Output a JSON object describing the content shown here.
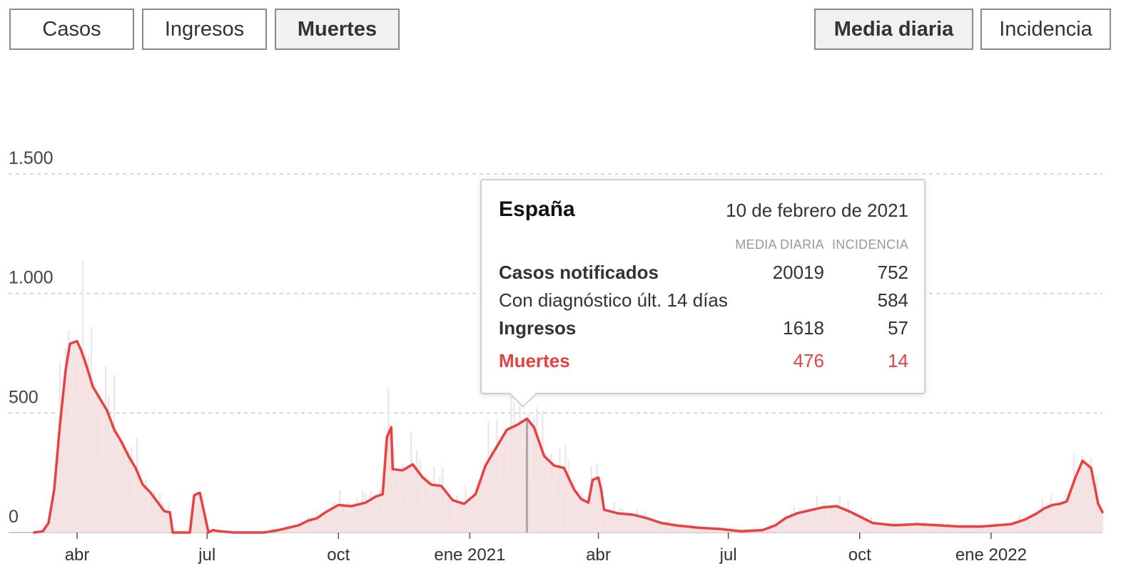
{
  "metric_tabs": [
    {
      "label": "Casos",
      "active": false
    },
    {
      "label": "Ingresos",
      "active": false
    },
    {
      "label": "Muertes",
      "active": true
    }
  ],
  "mode_tabs": [
    {
      "label": "Media diaria",
      "active": true
    },
    {
      "label": "Incidencia",
      "active": false
    }
  ],
  "colors": {
    "line": "#e84141",
    "area": "#f5dede",
    "bars": "#e9e9e9",
    "grid": "#cccccc",
    "cursor": "#aaaaaa"
  },
  "chart_data": {
    "type": "line",
    "title": "",
    "xlabel": "",
    "ylabel": "",
    "ylim": [
      0,
      1500
    ],
    "y_ticks": [
      {
        "value": 0,
        "label": "0"
      },
      {
        "value": 500,
        "label": "500"
      },
      {
        "value": 1000,
        "label": "1.000"
      },
      {
        "value": 1500,
        "label": "1.500"
      }
    ],
    "x_ticks": [
      {
        "date": "2020-04-01",
        "label": "abr"
      },
      {
        "date": "2020-07-01",
        "label": "jul"
      },
      {
        "date": "2020-10-01",
        "label": "oct"
      },
      {
        "date": "2021-01-01",
        "label": "ene 2021"
      },
      {
        "date": "2021-04-01",
        "label": "abr"
      },
      {
        "date": "2021-07-01",
        "label": "jul"
      },
      {
        "date": "2021-10-01",
        "label": "oct"
      },
      {
        "date": "2022-01-01",
        "label": "ene 2022"
      }
    ],
    "grid": true,
    "highlight_date": "2021-02-10",
    "series": [
      {
        "kind": "daily_average",
        "x": [
          "2020-03-02",
          "2020-03-08",
          "2020-03-12",
          "2020-03-16",
          "2020-03-20",
          "2020-03-24",
          "2020-03-27",
          "2020-04-01",
          "2020-04-04",
          "2020-04-08",
          "2020-04-12",
          "2020-04-17",
          "2020-04-22",
          "2020-04-27",
          "2020-05-02",
          "2020-05-07",
          "2020-05-12",
          "2020-05-17",
          "2020-05-22",
          "2020-05-27",
          "2020-06-01",
          "2020-06-04",
          "2020-06-05",
          "2020-06-07",
          "2020-06-08",
          "2020-06-15",
          "2020-06-18",
          "2020-06-19",
          "2020-06-22",
          "2020-06-25",
          "2020-06-26",
          "2020-07-02",
          "2020-07-05",
          "2020-07-10",
          "2020-07-20",
          "2020-08-01",
          "2020-08-10",
          "2020-08-20",
          "2020-08-27",
          "2020-09-03",
          "2020-09-10",
          "2020-09-16",
          "2020-09-22",
          "2020-10-01",
          "2020-10-10",
          "2020-10-20",
          "2020-10-27",
          "2020-11-01",
          "2020-11-04",
          "2020-11-07",
          "2020-11-08",
          "2020-11-15",
          "2020-11-22",
          "2020-11-29",
          "2020-12-05",
          "2020-12-12",
          "2020-12-20",
          "2020-12-28",
          "2021-01-05",
          "2021-01-12",
          "2021-01-20",
          "2021-01-27",
          "2021-02-03",
          "2021-02-10",
          "2021-02-15",
          "2021-02-22",
          "2021-03-01",
          "2021-03-08",
          "2021-03-15",
          "2021-03-20",
          "2021-03-25",
          "2021-03-28",
          "2021-04-01",
          "2021-04-03",
          "2021-04-05",
          "2021-04-15",
          "2021-04-25",
          "2021-05-05",
          "2021-05-15",
          "2021-05-25",
          "2021-06-10",
          "2021-06-25",
          "2021-07-10",
          "2021-07-25",
          "2021-08-03",
          "2021-08-10",
          "2021-08-18",
          "2021-08-25",
          "2021-09-05",
          "2021-09-15",
          "2021-09-25",
          "2021-10-10",
          "2021-10-25",
          "2021-11-10",
          "2021-11-25",
          "2021-12-10",
          "2021-12-25",
          "2022-01-05",
          "2022-01-15",
          "2022-01-25",
          "2022-02-02",
          "2022-02-07",
          "2022-02-13",
          "2022-02-18",
          "2022-02-23",
          "2022-03-01",
          "2022-03-06",
          "2022-03-12",
          "2022-03-17",
          "2022-03-20"
        ],
        "y": [
          0,
          5,
          40,
          180,
          450,
          680,
          790,
          800,
          760,
          690,
          610,
          560,
          510,
          430,
          380,
          320,
          270,
          200,
          170,
          130,
          90,
          85,
          85,
          0,
          0,
          0,
          0,
          0,
          155,
          165,
          165,
          0,
          10,
          5,
          0,
          0,
          0,
          10,
          20,
          30,
          50,
          60,
          85,
          115,
          110,
          125,
          150,
          160,
          400,
          440,
          265,
          260,
          285,
          230,
          200,
          195,
          135,
          120,
          160,
          280,
          360,
          430,
          450,
          476,
          440,
          320,
          280,
          270,
          180,
          140,
          125,
          220,
          230,
          180,
          95,
          80,
          75,
          60,
          40,
          30,
          20,
          15,
          5,
          10,
          30,
          60,
          80,
          90,
          105,
          110,
          85,
          40,
          30,
          35,
          30,
          25,
          25,
          30,
          35,
          55,
          80,
          100,
          115,
          120,
          130,
          230,
          300,
          270,
          120,
          85
        ]
      }
    ],
    "daily_bars_description_free": true,
    "tooltip": {
      "region": "España",
      "date_label": "10 de febrero de 2021",
      "col_headers": [
        "MEDIA DIARIA",
        "INCIDENCIA"
      ],
      "rows": [
        {
          "label": "Casos notificados",
          "daily": "20019",
          "incidence": "752",
          "bold": true,
          "red": false
        },
        {
          "label": "Con diagnóstico últ. 14 días",
          "daily": "",
          "incidence": "584",
          "bold": false,
          "red": false
        },
        {
          "label": "Ingresos",
          "daily": "1618",
          "incidence": "57",
          "bold": true,
          "red": false
        },
        {
          "label": "Muertes",
          "daily": "476",
          "incidence": "14",
          "bold": true,
          "red": true
        }
      ]
    }
  }
}
